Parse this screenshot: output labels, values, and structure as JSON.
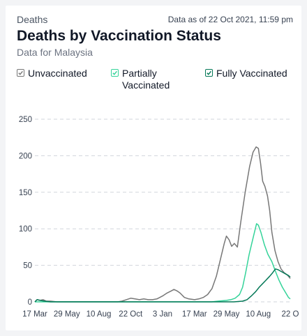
{
  "header": {
    "eyebrow": "Deaths",
    "as_of": "Data as of 22 Oct 2021, 11:59 pm",
    "title": "Deaths by Vaccination Status",
    "subtitle": "Data for Malaysia"
  },
  "legend": [
    {
      "label_line1": "Unvaccinated",
      "label_line2": "",
      "color": "#777777",
      "checked": true
    },
    {
      "label_line1": "Partially",
      "label_line2": "Vaccinated",
      "color": "#34d399",
      "checked": true
    },
    {
      "label_line1": "Fully Vaccinated",
      "label_line2": "",
      "color": "#047857",
      "checked": true
    }
  ],
  "chart_data": {
    "type": "line",
    "title": "Deaths by Vaccination Status",
    "xlabel": "",
    "ylabel": "",
    "ylim": [
      0,
      250
    ],
    "yticks": [
      0,
      50,
      100,
      150,
      200,
      250
    ],
    "xlim": [
      "2020-03-17",
      "2021-10-22"
    ],
    "xticks": [
      {
        "date": "2020-03-17",
        "label": "17 Mar"
      },
      {
        "date": "2020-05-29",
        "label": "29 May"
      },
      {
        "date": "2020-08-10",
        "label": "10 Aug"
      },
      {
        "date": "2020-10-22",
        "label": "22 Oct"
      },
      {
        "date": "2021-01-03",
        "label": "3 Jan"
      },
      {
        "date": "2021-03-17",
        "label": "17 Mar"
      },
      {
        "date": "2021-05-29",
        "label": "29 May"
      },
      {
        "date": "2021-08-10",
        "label": "10 Aug"
      },
      {
        "date": "2021-10-22",
        "label": "22 O"
      }
    ],
    "grid": true,
    "series": [
      {
        "name": "Unvaccinated",
        "color": "#777777",
        "points": [
          [
            "2020-03-17",
            0
          ],
          [
            "2020-03-22",
            3
          ],
          [
            "2020-03-29",
            2
          ],
          [
            "2020-04-05",
            3
          ],
          [
            "2020-04-12",
            1
          ],
          [
            "2020-04-22",
            1
          ],
          [
            "2020-05-07",
            0
          ],
          [
            "2020-08-10",
            0
          ],
          [
            "2020-09-22",
            0
          ],
          [
            "2020-10-02",
            1
          ],
          [
            "2020-10-12",
            3
          ],
          [
            "2020-10-22",
            5
          ],
          [
            "2020-11-01",
            4
          ],
          [
            "2020-11-11",
            3
          ],
          [
            "2020-11-21",
            4
          ],
          [
            "2020-12-01",
            3
          ],
          [
            "2020-12-11",
            3
          ],
          [
            "2020-12-21",
            4
          ],
          [
            "2021-01-03",
            8
          ],
          [
            "2021-01-13",
            12
          ],
          [
            "2021-01-23",
            15
          ],
          [
            "2021-01-29",
            17
          ],
          [
            "2021-02-05",
            15
          ],
          [
            "2021-02-12",
            12
          ],
          [
            "2021-02-22",
            6
          ],
          [
            "2021-03-04",
            4
          ],
          [
            "2021-03-17",
            3
          ],
          [
            "2021-03-27",
            4
          ],
          [
            "2021-04-06",
            6
          ],
          [
            "2021-04-16",
            10
          ],
          [
            "2021-04-26",
            18
          ],
          [
            "2021-05-06",
            35
          ],
          [
            "2021-05-16",
            60
          ],
          [
            "2021-05-24",
            80
          ],
          [
            "2021-05-29",
            90
          ],
          [
            "2021-06-04",
            85
          ],
          [
            "2021-06-10",
            76
          ],
          [
            "2021-06-16",
            80
          ],
          [
            "2021-06-23",
            75
          ],
          [
            "2021-07-01",
            110
          ],
          [
            "2021-07-11",
            150
          ],
          [
            "2021-07-21",
            185
          ],
          [
            "2021-07-29",
            205
          ],
          [
            "2021-08-05",
            212
          ],
          [
            "2021-08-10",
            210
          ],
          [
            "2021-08-15",
            190
          ],
          [
            "2021-08-20",
            165
          ],
          [
            "2021-08-25",
            158
          ],
          [
            "2021-08-31",
            145
          ],
          [
            "2021-09-05",
            125
          ],
          [
            "2021-09-10",
            95
          ],
          [
            "2021-09-17",
            70
          ],
          [
            "2021-09-24",
            55
          ],
          [
            "2021-10-01",
            45
          ],
          [
            "2021-10-08",
            40
          ],
          [
            "2021-10-15",
            37
          ],
          [
            "2021-10-22",
            32
          ]
        ]
      },
      {
        "name": "Partially Vaccinated",
        "color": "#34d399",
        "points": [
          [
            "2020-03-17",
            0
          ],
          [
            "2021-04-25",
            0
          ],
          [
            "2021-05-10",
            1
          ],
          [
            "2021-05-29",
            2
          ],
          [
            "2021-06-08",
            3
          ],
          [
            "2021-06-18",
            5
          ],
          [
            "2021-06-28",
            10
          ],
          [
            "2021-07-05",
            20
          ],
          [
            "2021-07-12",
            40
          ],
          [
            "2021-07-20",
            65
          ],
          [
            "2021-07-28",
            85
          ],
          [
            "2021-08-03",
            100
          ],
          [
            "2021-08-06",
            107
          ],
          [
            "2021-08-10",
            105
          ],
          [
            "2021-08-16",
            95
          ],
          [
            "2021-08-24",
            78
          ],
          [
            "2021-09-01",
            65
          ],
          [
            "2021-09-10",
            55
          ],
          [
            "2021-09-18",
            42
          ],
          [
            "2021-09-26",
            30
          ],
          [
            "2021-10-04",
            20
          ],
          [
            "2021-10-12",
            12
          ],
          [
            "2021-10-18",
            6
          ],
          [
            "2021-10-22",
            4
          ]
        ]
      },
      {
        "name": "Fully Vaccinated",
        "color": "#047857",
        "points": [
          [
            "2020-03-17",
            0
          ],
          [
            "2020-03-22",
            3
          ],
          [
            "2020-03-29",
            2
          ],
          [
            "2020-04-08",
            1
          ],
          [
            "2020-04-22",
            0
          ],
          [
            "2021-06-15",
            0
          ],
          [
            "2021-07-05",
            1
          ],
          [
            "2021-07-15",
            3
          ],
          [
            "2021-07-25",
            8
          ],
          [
            "2021-08-04",
            14
          ],
          [
            "2021-08-12",
            20
          ],
          [
            "2021-08-20",
            25
          ],
          [
            "2021-08-28",
            30
          ],
          [
            "2021-09-05",
            35
          ],
          [
            "2021-09-12",
            40
          ],
          [
            "2021-09-18",
            45
          ],
          [
            "2021-09-24",
            44
          ],
          [
            "2021-09-30",
            42
          ],
          [
            "2021-10-06",
            40
          ],
          [
            "2021-10-12",
            38
          ],
          [
            "2021-10-18",
            36
          ],
          [
            "2021-10-22",
            34
          ]
        ]
      }
    ]
  }
}
